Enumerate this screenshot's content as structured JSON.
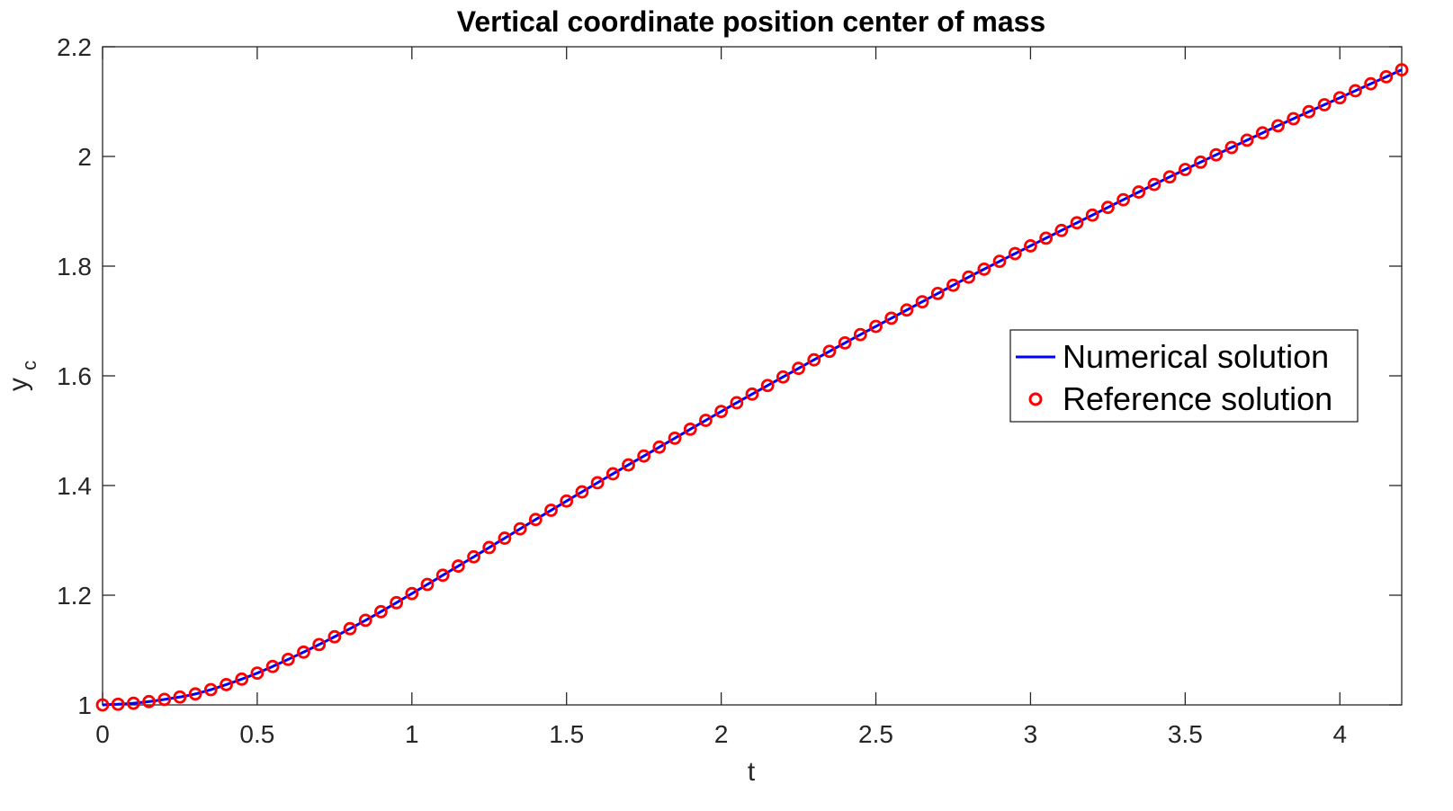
{
  "chart_data": {
    "type": "line",
    "title": "Vertical coordinate position center of mass",
    "xlabel": "t",
    "ylabel_main": "y",
    "ylabel_sub": "c",
    "xlim": [
      0,
      4.2
    ],
    "ylim": [
      1,
      2.2
    ],
    "xticks": [
      "0",
      "0.5",
      "1",
      "1.5",
      "2",
      "2.5",
      "3",
      "3.5",
      "4"
    ],
    "yticks": [
      "1",
      "1.2",
      "1.4",
      "1.6",
      "1.8",
      "2",
      "2.2"
    ],
    "grid": false,
    "legend_position": "right",
    "series": [
      {
        "name": "Numerical solution",
        "style": "line",
        "color": "#0000ff",
        "x": [
          0,
          0.1,
          0.2,
          0.3,
          0.4,
          0.5,
          0.6,
          0.7,
          0.8,
          0.9,
          1.0,
          1.2,
          1.4,
          1.6,
          1.8,
          2.0,
          2.2,
          2.4,
          2.6,
          2.8,
          3.0,
          3.2,
          3.4,
          3.6,
          3.8,
          4.0,
          4.2
        ],
        "y": [
          1.0,
          1.003,
          1.01,
          1.02,
          1.037,
          1.058,
          1.083,
          1.11,
          1.139,
          1.17,
          1.203,
          1.27,
          1.338,
          1.405,
          1.47,
          1.535,
          1.598,
          1.66,
          1.72,
          1.78,
          1.837,
          1.893,
          1.949,
          2.003,
          2.056,
          2.107,
          2.158
        ]
      },
      {
        "name": "Reference solution",
        "style": "markers",
        "marker": "circle",
        "color": "#ff0000",
        "x": [
          0,
          0.1,
          0.2,
          0.3,
          0.4,
          0.5,
          0.6,
          0.7,
          0.8,
          0.9,
          1.0,
          1.2,
          1.4,
          1.6,
          1.8,
          2.0,
          2.2,
          2.4,
          2.6,
          2.8,
          3.0,
          3.2,
          3.4,
          3.6,
          3.8,
          4.0,
          4.2
        ],
        "y": [
          1.0,
          1.003,
          1.01,
          1.02,
          1.037,
          1.058,
          1.083,
          1.11,
          1.139,
          1.17,
          1.203,
          1.27,
          1.338,
          1.405,
          1.47,
          1.535,
          1.598,
          1.66,
          1.72,
          1.78,
          1.837,
          1.893,
          1.949,
          2.003,
          2.056,
          2.107,
          2.158
        ]
      }
    ]
  }
}
